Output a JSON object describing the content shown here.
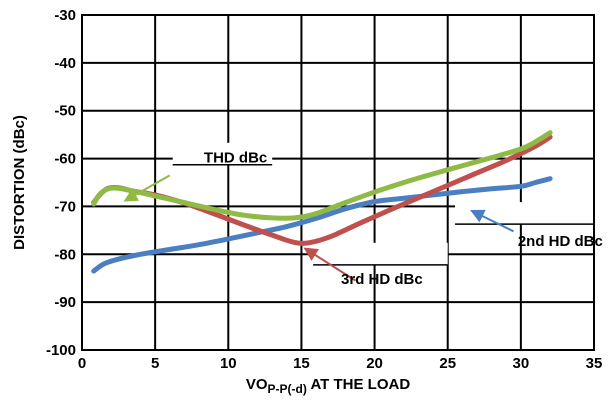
{
  "chart_data": {
    "type": "line",
    "xlabel_main": "VO",
    "xlabel_sub": "P-P(-d)",
    "xlabel_rest": " AT THE LOAD",
    "ylabel": "DISTORTION (dBc)",
    "xlim": [
      0,
      35
    ],
    "ylim": [
      -100,
      -30
    ],
    "x_ticks": [
      "0",
      "5",
      "10",
      "15",
      "20",
      "25",
      "30",
      "35"
    ],
    "y_ticks": [
      "-30",
      "-40",
      "-50",
      "-60",
      "-70",
      "-80",
      "-90",
      "-100"
    ],
    "grid": true,
    "series": [
      {
        "name": "THD dBc",
        "color": "#8fba45",
        "points": [
          [
            0.8,
            -69.5
          ],
          [
            1.2,
            -67.5
          ],
          [
            1.8,
            -66.3
          ],
          [
            2.5,
            -66.2
          ],
          [
            3.5,
            -66.8
          ],
          [
            5,
            -67.8
          ],
          [
            7,
            -69.2
          ],
          [
            9,
            -70.6
          ],
          [
            11,
            -71.8
          ],
          [
            13,
            -72.4
          ],
          [
            14.5,
            -72.4
          ],
          [
            16,
            -71.5
          ],
          [
            18,
            -69.2
          ],
          [
            20,
            -67.0
          ],
          [
            22,
            -65.0
          ],
          [
            24,
            -63.2
          ],
          [
            26,
            -61.5
          ],
          [
            28,
            -59.8
          ],
          [
            30,
            -58.0
          ],
          [
            31,
            -56.5
          ],
          [
            32,
            -54.6
          ]
        ]
      },
      {
        "name": "2nd HD dBc",
        "color": "#4a7fc1",
        "points": [
          [
            0.8,
            -83.5
          ],
          [
            1.5,
            -82.0
          ],
          [
            2.5,
            -81.0
          ],
          [
            4,
            -80.0
          ],
          [
            6,
            -79.0
          ],
          [
            8,
            -78.0
          ],
          [
            10,
            -76.8
          ],
          [
            12,
            -75.5
          ],
          [
            14,
            -74.2
          ],
          [
            16,
            -72.5
          ],
          [
            18,
            -70.5
          ],
          [
            20,
            -69.0
          ],
          [
            22,
            -68.3
          ],
          [
            24,
            -67.6
          ],
          [
            26,
            -66.9
          ],
          [
            28,
            -66.3
          ],
          [
            30,
            -65.8
          ],
          [
            31,
            -65.0
          ],
          [
            32,
            -64.2
          ]
        ]
      },
      {
        "name": "3rd HD dBc",
        "color": "#c0504d",
        "points": [
          [
            0.8,
            -69.2
          ],
          [
            1.3,
            -67.3
          ],
          [
            1.8,
            -66.2
          ],
          [
            2.5,
            -66.1
          ],
          [
            3.5,
            -66.8
          ],
          [
            5,
            -67.6
          ],
          [
            7,
            -69.3
          ],
          [
            9,
            -71.5
          ],
          [
            11,
            -73.8
          ],
          [
            13,
            -76.0
          ],
          [
            14.5,
            -77.5
          ],
          [
            15.5,
            -77.6
          ],
          [
            17,
            -76.3
          ],
          [
            19,
            -73.5
          ],
          [
            21,
            -70.8
          ],
          [
            23,
            -68.2
          ],
          [
            25,
            -65.6
          ],
          [
            27,
            -63.0
          ],
          [
            29,
            -60.4
          ],
          [
            31,
            -57.4
          ],
          [
            32,
            -55.5
          ]
        ]
      }
    ],
    "annotations": [
      {
        "label": "THD dBc",
        "series": "THD dBc",
        "text_at": [
          10.5,
          -59.8
        ],
        "box_from": [
          6.2,
          -61.3
        ],
        "box_to": [
          13.0,
          -61.3
        ],
        "arrow_from": [
          6.0,
          -63.5
        ],
        "arrow_to": [
          3.0,
          -68.7
        ]
      },
      {
        "label": "2nd HD dBc",
        "series": "2nd HD dBc",
        "text_at": [
          32.7,
          -77.2
        ],
        "box_from": [
          25.5,
          -73.7
        ],
        "box_to": [
          35,
          -73.7
        ],
        "arrow_from": [
          29.5,
          -75.2
        ],
        "arrow_to": [
          26.7,
          -71.0
        ]
      },
      {
        "label": "3rd HD dBc",
        "series": "3rd HD dBc",
        "text_at": [
          20.5,
          -85.2
        ],
        "box_from": [
          15.8,
          -82.2
        ],
        "box_to": [
          25.0,
          -82.2
        ],
        "arrow_from": [
          18.7,
          -85.5
        ],
        "arrow_to": [
          15.3,
          -78.9
        ]
      }
    ]
  }
}
